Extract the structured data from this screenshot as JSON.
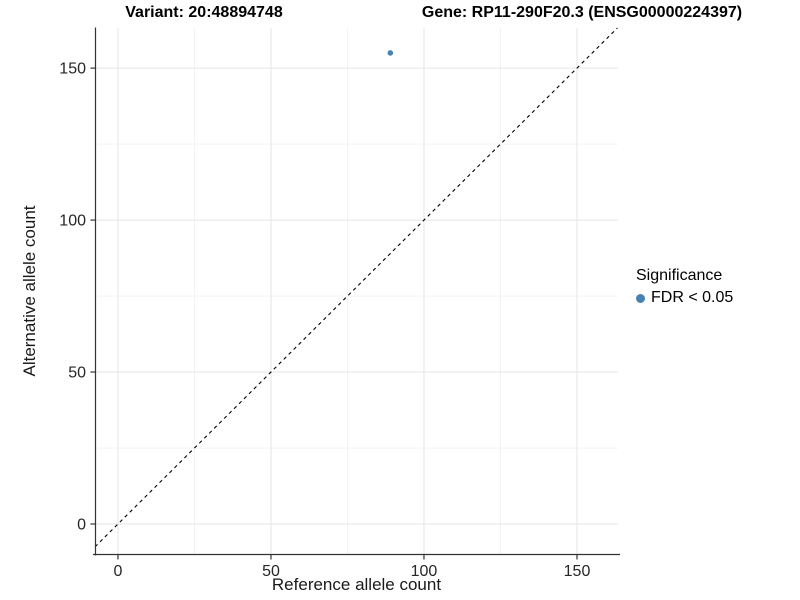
{
  "titles": {
    "variant": "Variant: 20:48894748",
    "gene": "Gene: RP11-290F20.3 (ENSG00000224397)"
  },
  "axes": {
    "x": {
      "label": "Reference allele count",
      "ticks": [
        "0",
        "50",
        "100",
        "150"
      ]
    },
    "y": {
      "label": "Alternative allele count",
      "ticks": [
        "0",
        "50",
        "100",
        "150"
      ]
    }
  },
  "legend": {
    "title": "Significance",
    "items": [
      {
        "label": "FDR < 0.05",
        "color": "#4682b4"
      }
    ]
  },
  "colors": {
    "point": "#4682b4",
    "axis_line": "#333333",
    "grid_major": "#e5e5e5",
    "grid_minor": "#f2f2f2",
    "reference_line": "#000000",
    "tick_text": "#262626"
  },
  "chart_data": {
    "type": "scatter",
    "title_left": "Variant: 20:48894748",
    "title_right": "Gene: RP11-290F20.3 (ENSG00000224397)",
    "xlabel": "Reference allele count",
    "ylabel": "Alternative allele count",
    "xlim": [
      -7.5,
      163.4
    ],
    "ylim": [
      -10.2,
      163.2
    ],
    "x_ticks": [
      0,
      50,
      100,
      150
    ],
    "y_ticks": [
      0,
      50,
      100,
      150
    ],
    "x_minor_ticks": [
      25,
      75,
      125
    ],
    "y_minor_ticks": [
      25,
      75,
      125
    ],
    "grid": true,
    "points": [
      {
        "x": 89,
        "y": 155,
        "series": "FDR < 0.05"
      }
    ],
    "reference_line": {
      "type": "identity",
      "slope": 1,
      "intercept": 0,
      "style": "dashed"
    },
    "legend_position": "right"
  }
}
